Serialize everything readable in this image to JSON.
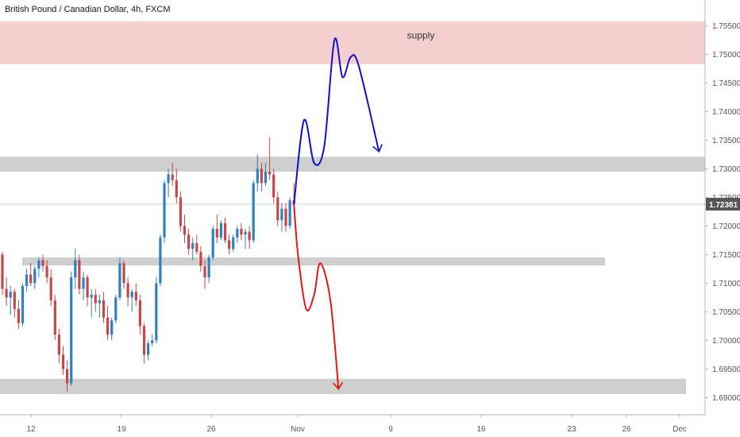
{
  "header": {
    "title": "British Pound / Canadian Dollar, 4h, FXCM"
  },
  "colors": {
    "bull": "#2f7fc1",
    "bear": "#c2484a",
    "zone_gray": "#cfcfcf",
    "zone_supply": "#f4cfcf",
    "path_up": "#1010c8",
    "path_down": "#e01818",
    "axis_text": "#555555",
    "last_price_bg": "#555555"
  },
  "chart_data": {
    "type": "candlestick",
    "title": "British Pound / Canadian Dollar, 4h, FXCM",
    "ylim": [
      1.687,
      1.7595
    ],
    "y_ticks": [
      "1.75500",
      "1.75000",
      "1.74500",
      "1.74000",
      "1.73500",
      "1.73000",
      "1.72500",
      "1.72000",
      "1.71500",
      "1.71000",
      "1.70500",
      "1.70000",
      "1.69500",
      "1.69000"
    ],
    "x_ticks": [
      "12",
      "19",
      "26",
      "Nov",
      "9",
      "16",
      "23",
      "26",
      "Dec"
    ],
    "last_price": "1.72381",
    "annotations": [
      {
        "type": "zone",
        "name": "supply",
        "label": "supply",
        "from": 1.7483,
        "to": 1.7558
      },
      {
        "type": "zone",
        "name": "resistance-zone",
        "from": 1.7295,
        "to": 1.7321
      },
      {
        "type": "zone",
        "name": "mid-zone",
        "from": 1.7131,
        "to": 1.7145
      },
      {
        "type": "zone",
        "name": "support-zone",
        "from": 1.6906,
        "to": 1.6933
      }
    ],
    "series": [
      {
        "values": [
          [
            1.715,
            1.7155,
            1.708,
            1.709
          ],
          [
            1.709,
            1.711,
            1.706,
            1.7075
          ],
          [
            1.7075,
            1.7095,
            1.7045,
            1.7085
          ],
          [
            1.7085,
            1.709,
            1.704,
            1.7055
          ],
          [
            1.7055,
            1.707,
            1.702,
            1.703
          ],
          [
            1.703,
            1.71,
            1.7025,
            1.7095
          ],
          [
            1.7095,
            1.7125,
            1.7085,
            1.7115
          ],
          [
            1.7115,
            1.7135,
            1.7095,
            1.71
          ],
          [
            1.71,
            1.713,
            1.709,
            1.7125
          ],
          [
            1.7125,
            1.7145,
            1.711,
            1.714
          ],
          [
            1.714,
            1.715,
            1.712,
            1.713
          ],
          [
            1.713,
            1.714,
            1.71,
            1.711
          ],
          [
            1.711,
            1.7125,
            1.706,
            1.707
          ],
          [
            1.707,
            1.708,
            1.7,
            1.701
          ],
          [
            1.701,
            1.702,
            1.696,
            1.6975
          ],
          [
            1.6975,
            1.699,
            1.694,
            1.695
          ],
          [
            1.695,
            1.6965,
            1.691,
            1.6925
          ],
          [
            1.6925,
            1.712,
            1.692,
            1.711
          ],
          [
            1.711,
            1.716,
            1.709,
            1.714
          ],
          [
            1.714,
            1.715,
            1.708,
            1.709
          ],
          [
            1.709,
            1.712,
            1.707,
            1.711
          ],
          [
            1.711,
            1.7115,
            1.706,
            1.7075
          ],
          [
            1.7075,
            1.709,
            1.704,
            1.708
          ],
          [
            1.708,
            1.709,
            1.705,
            1.7065
          ],
          [
            1.7065,
            1.708,
            1.704,
            1.707
          ],
          [
            1.707,
            1.7085,
            1.703,
            1.704
          ],
          [
            1.704,
            1.706,
            1.7,
            1.701
          ],
          [
            1.701,
            1.704,
            1.7,
            1.7035
          ],
          [
            1.7035,
            1.708,
            1.703,
            1.7075
          ],
          [
            1.7075,
            1.7145,
            1.707,
            1.7135
          ],
          [
            1.7135,
            1.714,
            1.709,
            1.71
          ],
          [
            1.71,
            1.711,
            1.706,
            1.7075
          ],
          [
            1.7075,
            1.709,
            1.705,
            1.7085
          ],
          [
            1.7085,
            1.71,
            1.706,
            1.707
          ],
          [
            1.707,
            1.708,
            1.701,
            1.7025
          ],
          [
            1.7025,
            1.703,
            1.696,
            1.6975
          ],
          [
            1.6975,
            1.7,
            1.6965,
            1.6995
          ],
          [
            1.6995,
            1.701,
            1.699,
            1.7
          ],
          [
            1.7,
            1.711,
            1.6995,
            1.71
          ],
          [
            1.71,
            1.7185,
            1.7095,
            1.718
          ],
          [
            1.718,
            1.728,
            1.717,
            1.7275
          ],
          [
            1.7275,
            1.73,
            1.725,
            1.729
          ],
          [
            1.729,
            1.731,
            1.727,
            1.728
          ],
          [
            1.728,
            1.73,
            1.724,
            1.725
          ],
          [
            1.725,
            1.726,
            1.719,
            1.72
          ],
          [
            1.72,
            1.722,
            1.717,
            1.7185
          ],
          [
            1.7185,
            1.7195,
            1.715,
            1.716
          ],
          [
            1.716,
            1.718,
            1.714,
            1.717
          ],
          [
            1.717,
            1.7185,
            1.715,
            1.7155
          ],
          [
            1.7155,
            1.7165,
            1.712,
            1.713
          ],
          [
            1.713,
            1.714,
            1.709,
            1.711
          ],
          [
            1.711,
            1.715,
            1.71,
            1.7145
          ],
          [
            1.7145,
            1.72,
            1.714,
            1.7195
          ],
          [
            1.7195,
            1.722,
            1.717,
            1.718
          ],
          [
            1.718,
            1.721,
            1.7175,
            1.7205
          ],
          [
            1.7205,
            1.7215,
            1.717,
            1.7175
          ],
          [
            1.7175,
            1.7185,
            1.715,
            1.716
          ],
          [
            1.716,
            1.7185,
            1.7155,
            1.718
          ],
          [
            1.718,
            1.72,
            1.717,
            1.7195
          ],
          [
            1.7195,
            1.7205,
            1.7175,
            1.7185
          ],
          [
            1.7185,
            1.7195,
            1.716,
            1.719
          ],
          [
            1.719,
            1.72,
            1.716,
            1.7175
          ],
          [
            1.7175,
            1.728,
            1.717,
            1.7275
          ],
          [
            1.7275,
            1.7325,
            1.726,
            1.73
          ],
          [
            1.73,
            1.731,
            1.726,
            1.7275
          ],
          [
            1.7275,
            1.731,
            1.727,
            1.7295
          ],
          [
            1.7295,
            1.7355,
            1.728,
            1.729
          ],
          [
            1.729,
            1.73,
            1.724,
            1.725
          ],
          [
            1.725,
            1.726,
            1.72,
            1.721
          ],
          [
            1.721,
            1.724,
            1.719,
            1.723
          ],
          [
            1.723,
            1.724,
            1.719,
            1.72
          ],
          [
            1.72,
            1.725,
            1.7195,
            1.7245
          ],
          [
            1.7245,
            1.7275,
            1.7225,
            1.7238
          ]
        ]
      }
    ],
    "projections": [
      {
        "name": "bullish-projection",
        "path": [
          [
            72,
            1.7238
          ],
          [
            74.5,
            1.7385
          ],
          [
            77,
            1.731
          ],
          [
            79.5,
            1.734
          ],
          [
            82,
            1.7525
          ],
          [
            84,
            1.746
          ],
          [
            86,
            1.7495
          ],
          [
            88,
            1.748
          ],
          [
            93,
            1.733
          ]
        ]
      },
      {
        "name": "bearish-projection",
        "path": [
          [
            72,
            1.7238
          ],
          [
            73,
            1.715
          ],
          [
            75,
            1.7055
          ],
          [
            77,
            1.708
          ],
          [
            78.5,
            1.7135
          ],
          [
            81,
            1.707
          ],
          [
            83,
            1.6915
          ]
        ]
      }
    ]
  }
}
